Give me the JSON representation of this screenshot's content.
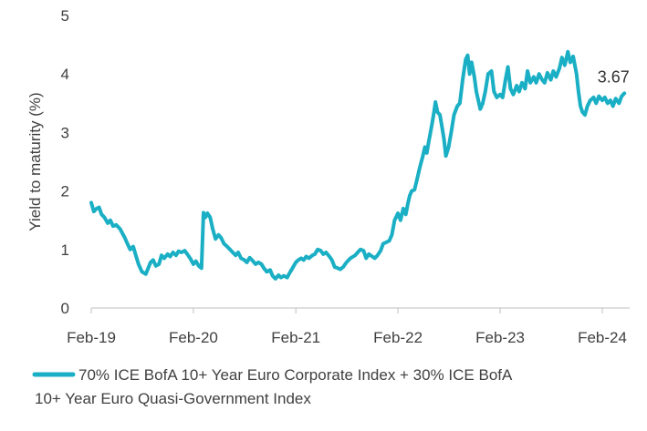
{
  "chart_data": {
    "type": "line",
    "ylabel": "Yield to maturity (%)",
    "xlabel": "",
    "ylim": [
      0,
      5
    ],
    "y_ticks": [
      "0",
      "1",
      "2",
      "3",
      "4",
      "5"
    ],
    "x_ticks": [
      "Feb-19",
      "Feb-20",
      "Feb-21",
      "Feb-22",
      "Feb-23",
      "Feb-24"
    ],
    "grid": false,
    "legend_position": "bottom",
    "end_label": "3.67",
    "series": [
      {
        "name": "70% ICE BofA 10+ Year Euro Corporate Index + 30% ICE BofA 10+ Year Euro Quasi-Government Index",
        "color": "#1AAFC4",
        "points": [
          [
            "2019-02",
            1.8
          ],
          [
            "2019-02-10",
            1.65
          ],
          [
            "2019-02-20",
            1.7
          ],
          [
            "2019-03",
            1.72
          ],
          [
            "2019-03-10",
            1.6
          ],
          [
            "2019-03-20",
            1.55
          ],
          [
            "2019-04",
            1.45
          ],
          [
            "2019-04-10",
            1.5
          ],
          [
            "2019-04-20",
            1.4
          ],
          [
            "2019-05",
            1.42
          ],
          [
            "2019-05-15",
            1.35
          ],
          [
            "2019-06",
            1.2
          ],
          [
            "2019-06-10",
            1.1
          ],
          [
            "2019-06-20",
            1.0
          ],
          [
            "2019-07",
            1.05
          ],
          [
            "2019-07-10",
            0.9
          ],
          [
            "2019-07-20",
            0.75
          ],
          [
            "2019-08",
            0.62
          ],
          [
            "2019-08-15",
            0.58
          ],
          [
            "2019-09",
            0.78
          ],
          [
            "2019-09-10",
            0.82
          ],
          [
            "2019-09-20",
            0.72
          ],
          [
            "2019-10",
            0.75
          ],
          [
            "2019-10-10",
            0.9
          ],
          [
            "2019-10-20",
            0.85
          ],
          [
            "2019-11",
            0.92
          ],
          [
            "2019-11-10",
            0.88
          ],
          [
            "2019-11-20",
            0.95
          ],
          [
            "2019-12",
            0.9
          ],
          [
            "2019-12-10",
            0.97
          ],
          [
            "2019-12-20",
            0.95
          ],
          [
            "2020-01",
            0.98
          ],
          [
            "2020-01-10",
            0.92
          ],
          [
            "2020-01-20",
            0.85
          ],
          [
            "2020-02",
            0.75
          ],
          [
            "2020-02-10",
            0.8
          ],
          [
            "2020-02-20",
            0.72
          ],
          [
            "2020-03",
            0.68
          ],
          [
            "2020-03-08",
            1.63
          ],
          [
            "2020-03-15",
            1.55
          ],
          [
            "2020-03-22",
            1.62
          ],
          [
            "2020-04",
            1.55
          ],
          [
            "2020-04-10",
            1.35
          ],
          [
            "2020-04-20",
            1.18
          ],
          [
            "2020-05",
            1.25
          ],
          [
            "2020-05-10",
            1.2
          ],
          [
            "2020-05-20",
            1.1
          ],
          [
            "2020-06",
            1.05
          ],
          [
            "2020-06-15",
            0.98
          ],
          [
            "2020-07",
            0.9
          ],
          [
            "2020-07-10",
            0.95
          ],
          [
            "2020-07-20",
            0.85
          ],
          [
            "2020-08",
            0.82
          ],
          [
            "2020-08-10",
            0.78
          ],
          [
            "2020-08-20",
            0.86
          ],
          [
            "2020-09",
            0.8
          ],
          [
            "2020-09-10",
            0.75
          ],
          [
            "2020-09-20",
            0.78
          ],
          [
            "2020-10",
            0.75
          ],
          [
            "2020-10-10",
            0.68
          ],
          [
            "2020-10-20",
            0.62
          ],
          [
            "2020-11",
            0.65
          ],
          [
            "2020-11-10",
            0.55
          ],
          [
            "2020-11-20",
            0.5
          ],
          [
            "2020-12",
            0.56
          ],
          [
            "2020-12-10",
            0.52
          ],
          [
            "2020-12-20",
            0.55
          ],
          [
            "2021-01",
            0.52
          ],
          [
            "2021-01-10",
            0.6
          ],
          [
            "2021-01-20",
            0.68
          ],
          [
            "2021-02",
            0.78
          ],
          [
            "2021-02-10",
            0.82
          ],
          [
            "2021-02-20",
            0.85
          ],
          [
            "2021-03",
            0.82
          ],
          [
            "2021-03-10",
            0.88
          ],
          [
            "2021-03-20",
            0.85
          ],
          [
            "2021-04",
            0.9
          ],
          [
            "2021-04-10",
            0.92
          ],
          [
            "2021-04-20",
            1.0
          ],
          [
            "2021-05",
            0.98
          ],
          [
            "2021-05-10",
            0.92
          ],
          [
            "2021-05-20",
            0.95
          ],
          [
            "2021-06",
            0.88
          ],
          [
            "2021-06-10",
            0.82
          ],
          [
            "2021-06-20",
            0.7
          ],
          [
            "2021-07",
            0.68
          ],
          [
            "2021-07-10",
            0.66
          ],
          [
            "2021-07-20",
            0.7
          ],
          [
            "2021-08",
            0.78
          ],
          [
            "2021-08-15",
            0.85
          ],
          [
            "2021-09",
            0.9
          ],
          [
            "2021-09-10",
            0.95
          ],
          [
            "2021-09-20",
            1.0
          ],
          [
            "2021-10",
            0.98
          ],
          [
            "2021-10-10",
            0.85
          ],
          [
            "2021-10-20",
            0.92
          ],
          [
            "2021-11",
            0.88
          ],
          [
            "2021-11-10",
            0.85
          ],
          [
            "2021-11-20",
            0.9
          ],
          [
            "2021-12",
            0.98
          ],
          [
            "2021-12-10",
            1.1
          ],
          [
            "2021-12-20",
            1.12
          ],
          [
            "2022-01",
            1.15
          ],
          [
            "2022-01-10",
            1.25
          ],
          [
            "2022-01-20",
            1.5
          ],
          [
            "2022-02",
            1.62
          ],
          [
            "2022-02-10",
            1.5
          ],
          [
            "2022-02-20",
            1.7
          ],
          [
            "2022-03",
            1.6
          ],
          [
            "2022-03-08",
            1.78
          ],
          [
            "2022-03-15",
            1.92
          ],
          [
            "2022-03-22",
            2.0
          ],
          [
            "2022-04",
            2.02
          ],
          [
            "2022-04-10",
            2.2
          ],
          [
            "2022-04-20",
            2.4
          ],
          [
            "2022-05",
            2.6
          ],
          [
            "2022-05-08",
            2.75
          ],
          [
            "2022-05-15",
            2.65
          ],
          [
            "2022-05-22",
            2.85
          ],
          [
            "2022-06",
            3.1
          ],
          [
            "2022-06-08",
            3.3
          ],
          [
            "2022-06-15",
            3.52
          ],
          [
            "2022-06-22",
            3.35
          ],
          [
            "2022-07",
            3.3
          ],
          [
            "2022-07-08",
            3.1
          ],
          [
            "2022-07-15",
            2.9
          ],
          [
            "2022-07-22",
            2.6
          ],
          [
            "2022-08",
            2.75
          ],
          [
            "2022-08-10",
            3.0
          ],
          [
            "2022-08-20",
            3.3
          ],
          [
            "2022-09",
            3.45
          ],
          [
            "2022-09-10",
            3.5
          ],
          [
            "2022-09-20",
            3.9
          ],
          [
            "2022-10",
            4.25
          ],
          [
            "2022-10-08",
            4.32
          ],
          [
            "2022-10-15",
            4.0
          ],
          [
            "2022-10-22",
            4.2
          ],
          [
            "2022-11",
            3.95
          ],
          [
            "2022-11-08",
            3.7
          ],
          [
            "2022-11-15",
            3.55
          ],
          [
            "2022-11-22",
            3.4
          ],
          [
            "2022-12",
            3.5
          ],
          [
            "2022-12-10",
            3.7
          ],
          [
            "2022-12-20",
            4.0
          ],
          [
            "2023-01",
            4.05
          ],
          [
            "2023-01-10",
            3.7
          ],
          [
            "2023-01-20",
            3.6
          ],
          [
            "2023-02",
            3.65
          ],
          [
            "2023-02-10",
            3.6
          ],
          [
            "2023-02-20",
            3.9
          ],
          [
            "2023-03",
            4.12
          ],
          [
            "2023-03-10",
            3.75
          ],
          [
            "2023-03-20",
            3.65
          ],
          [
            "2023-04",
            3.8
          ],
          [
            "2023-04-10",
            3.7
          ],
          [
            "2023-04-20",
            3.85
          ],
          [
            "2023-05",
            3.75
          ],
          [
            "2023-05-10",
            4.05
          ],
          [
            "2023-05-20",
            3.85
          ],
          [
            "2023-06",
            3.95
          ],
          [
            "2023-06-10",
            3.85
          ],
          [
            "2023-06-20",
            4.0
          ],
          [
            "2023-07",
            3.9
          ],
          [
            "2023-07-10",
            3.85
          ],
          [
            "2023-07-20",
            4.02
          ],
          [
            "2023-08",
            3.9
          ],
          [
            "2023-08-10",
            4.05
          ],
          [
            "2023-08-20",
            3.95
          ],
          [
            "2023-09",
            4.1
          ],
          [
            "2023-09-10",
            4.28
          ],
          [
            "2023-09-20",
            4.15
          ],
          [
            "2023-10",
            4.38
          ],
          [
            "2023-10-10",
            4.2
          ],
          [
            "2023-10-20",
            4.3
          ],
          [
            "2023-11",
            4.0
          ],
          [
            "2023-11-08",
            3.7
          ],
          [
            "2023-11-15",
            3.45
          ],
          [
            "2023-11-22",
            3.35
          ],
          [
            "2023-12",
            3.3
          ],
          [
            "2023-12-10",
            3.45
          ],
          [
            "2023-12-20",
            3.55
          ],
          [
            "2024-01",
            3.6
          ],
          [
            "2024-01-10",
            3.5
          ],
          [
            "2024-01-20",
            3.62
          ],
          [
            "2024-02",
            3.55
          ],
          [
            "2024-02-10",
            3.6
          ],
          [
            "2024-02-20",
            3.5
          ],
          [
            "2024-03",
            3.55
          ],
          [
            "2024-03-10",
            3.45
          ],
          [
            "2024-03-20",
            3.58
          ],
          [
            "2024-04",
            3.5
          ],
          [
            "2024-04-10",
            3.62
          ],
          [
            "2024-04-20",
            3.67
          ]
        ]
      }
    ]
  }
}
